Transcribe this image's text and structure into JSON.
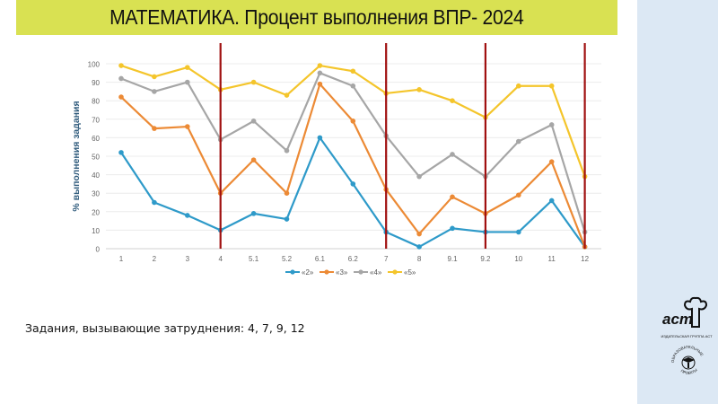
{
  "header": {
    "title": "МАТЕМАТИКА. Процент выполнения ВПР- 2024"
  },
  "footer": {
    "note": "Задания, вызывающие затруднения: 4, 7, 9, 12"
  },
  "logos": {
    "publisher": {
      "mark": "аст",
      "caption": "ИЗДАТЕЛЬСКАЯ ГРУППА АСТ"
    },
    "projects": {
      "caption": "ОБРАЗОВАТЕЛЬНЫЕ ПРОЕКТЫ"
    }
  },
  "colors": {
    "title_bg": "#d9e152",
    "side_panel": "#dce8f4",
    "series_2": "#2e9ac9",
    "series_3": "#ec8a35",
    "series_4": "#a6a6a6",
    "series_5": "#f4c52b",
    "highlight_line": "#a01010",
    "axis_label": "#2f5b7c"
  },
  "chart_data": {
    "type": "line",
    "title": "МАТЕМАТИКА. Процент выполнения ВПР- 2024",
    "xlabel": "",
    "ylabel": "% выполнения задания",
    "ylim": [
      0,
      100
    ],
    "yticks": [
      0,
      10,
      20,
      30,
      40,
      50,
      60,
      70,
      80,
      90,
      100
    ],
    "grid": true,
    "legend_position": "bottom",
    "categories": [
      "1",
      "2",
      "3",
      "4",
      "5.1",
      "5.2",
      "6.1",
      "6.2",
      "7",
      "8",
      "9.1",
      "9.2",
      "10",
      "11",
      "12"
    ],
    "series": [
      {
        "name": "«2»",
        "values": [
          52,
          25,
          18,
          10,
          19,
          16,
          60,
          35,
          9,
          1,
          11,
          9,
          9,
          26,
          1
        ]
      },
      {
        "name": "«3»",
        "values": [
          82,
          65,
          66,
          30,
          48,
          30,
          89,
          69,
          32,
          8,
          28,
          19,
          29,
          47,
          1
        ]
      },
      {
        "name": "«4»",
        "values": [
          92,
          85,
          90,
          59,
          69,
          53,
          95,
          88,
          61,
          39,
          51,
          39,
          58,
          67,
          9
        ]
      },
      {
        "name": "«5»",
        "values": [
          99,
          93,
          98,
          86,
          90,
          83,
          99,
          96,
          84,
          86,
          80,
          71,
          88,
          88,
          39
        ]
      }
    ],
    "annotations": [
      {
        "type": "vertical_line",
        "at": "4"
      },
      {
        "type": "vertical_line",
        "at": "7"
      },
      {
        "type": "vertical_line",
        "at": "9.2"
      },
      {
        "type": "vertical_line",
        "at": "12"
      }
    ]
  }
}
